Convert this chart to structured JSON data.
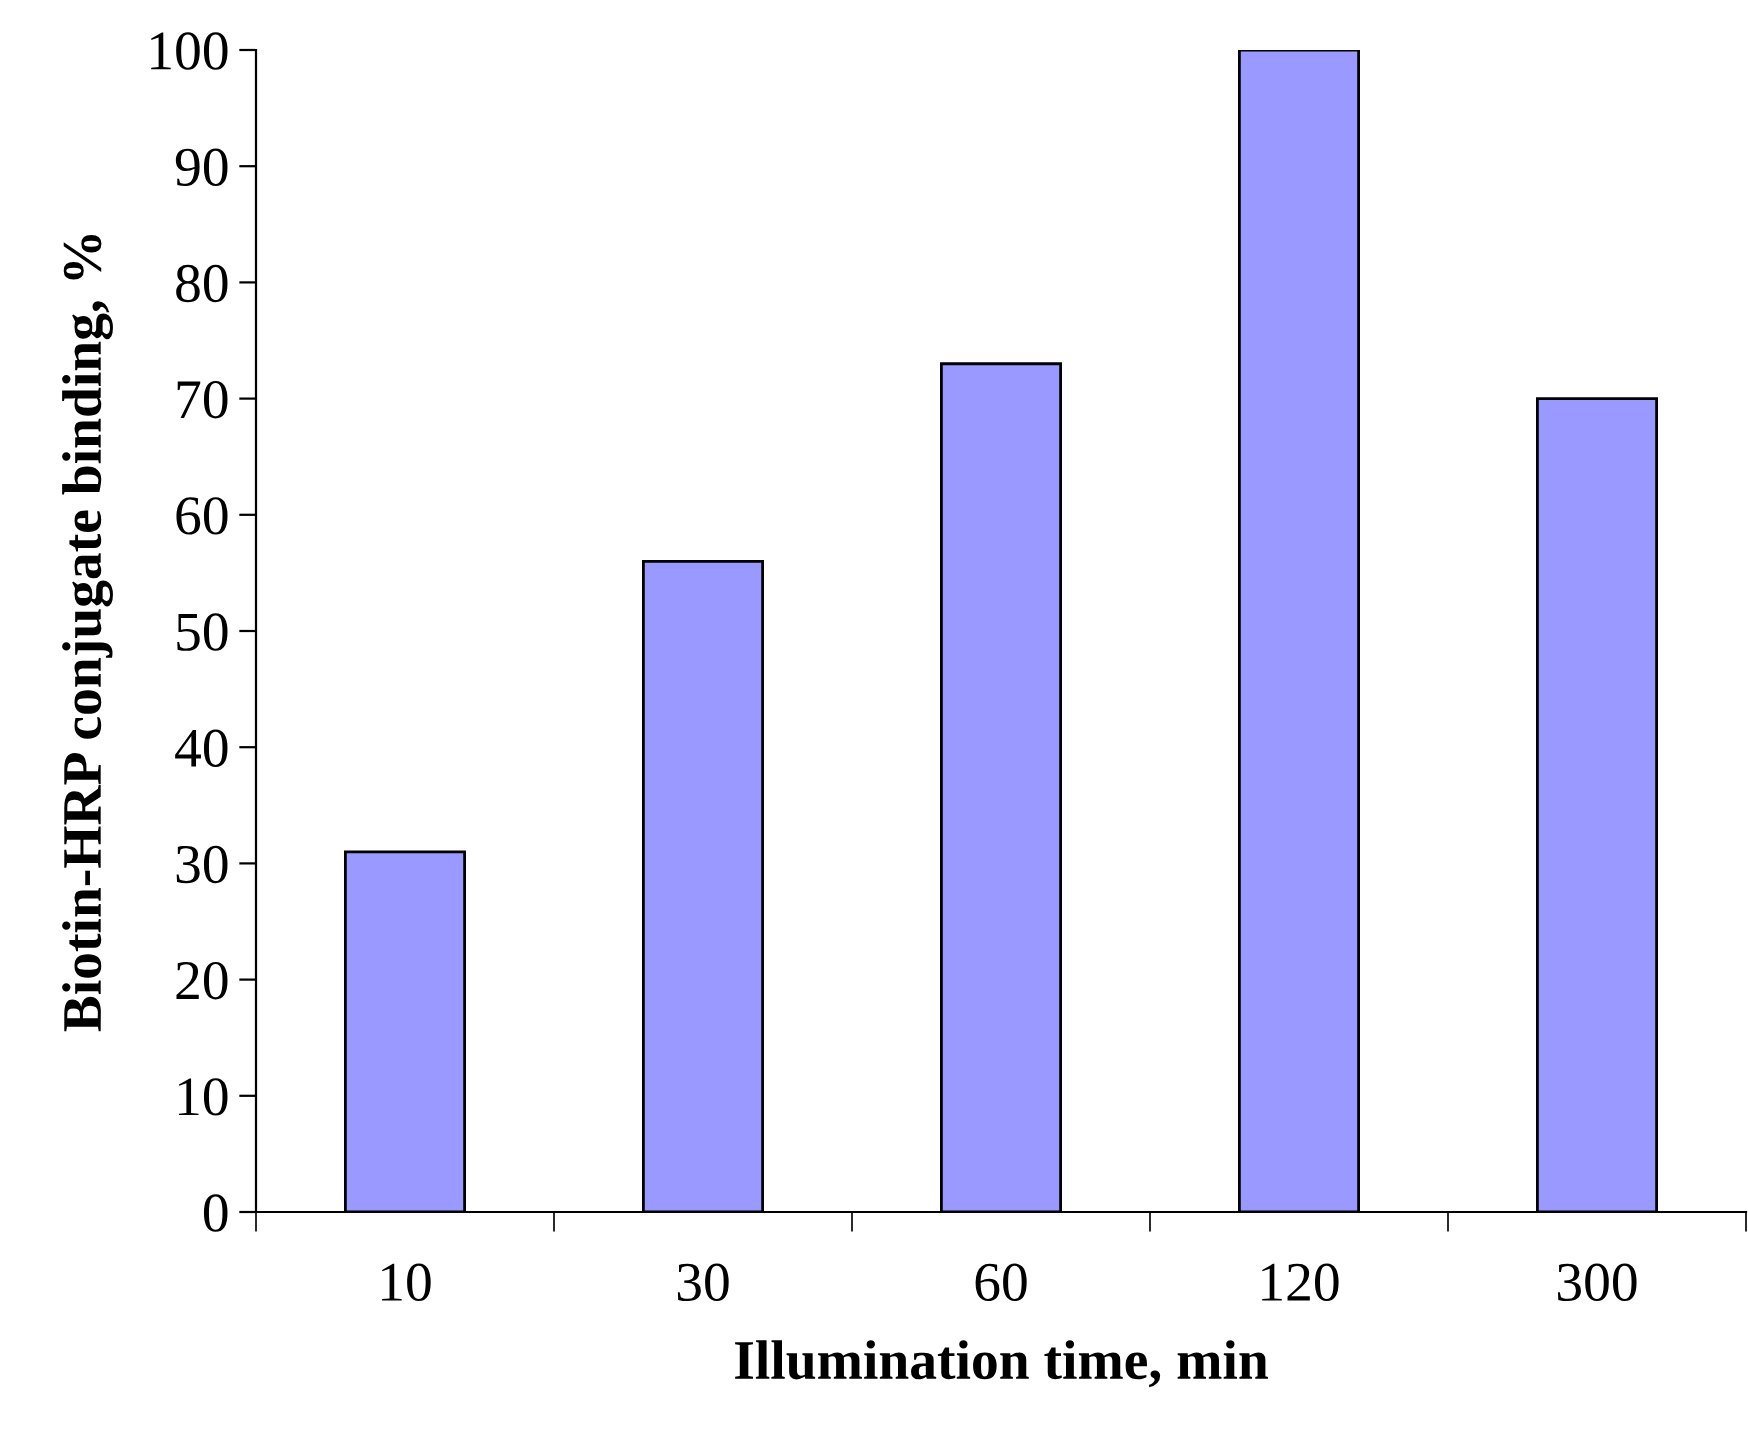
{
  "chart_data": {
    "type": "bar",
    "xlabel": "Illumination time, min",
    "ylabel": "Biotin-HRP conjugate binding, %",
    "categories": [
      "10",
      "30",
      "60",
      "120",
      "300"
    ],
    "values": [
      31,
      56,
      73,
      100,
      70
    ],
    "color": "#9999ff",
    "ylim": [
      0,
      100
    ],
    "yticks": [
      0,
      10,
      20,
      30,
      40,
      50,
      60,
      70,
      80,
      90,
      100
    ],
    "grid": false
  }
}
